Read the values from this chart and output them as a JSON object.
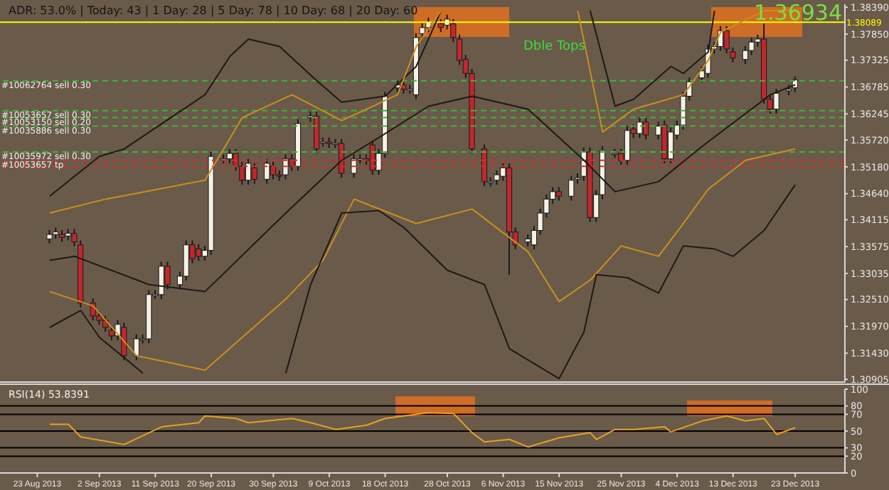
{
  "chart_data": [
    {
      "type": "candlestick",
      "tick_labels": "y",
      "xlim": [
        "2013-08-17",
        "2013-12-31"
      ],
      "ylim": [
        1.3085,
        1.3845
      ],
      "yticks": [
        {
          "value": 1.3839,
          "label": "1.38390"
        },
        {
          "value": 1.3785,
          "label": "1.37850"
        },
        1.37325,
        1.36785,
        1.36245,
        {
          "value": 1.3572,
          "label": "1.35720"
        },
        {
          "value": 1.3518,
          "label": "1.35180"
        },
        {
          "value": 1.3464,
          "label": "1.34640"
        },
        1.34115,
        1.33575,
        1.33035,
        {
          "value": 1.3251,
          "label": "1.32510"
        },
        {
          "value": 1.3197,
          "label": "1.31970"
        },
        {
          "value": 1.3143,
          "label": "1.31430"
        },
        1.30905
      ],
      "x": [
        "2013-08-25",
        "2013-08-26",
        "2013-08-27",
        "2013-08-28",
        "2013-08-29",
        "2013-08-30",
        "2013-09-01",
        "2013-09-02",
        "2013-09-03",
        "2013-09-04",
        "2013-09-05",
        "2013-09-06",
        "2013-09-08",
        "2013-09-09",
        "2013-09-10",
        "2013-09-11",
        "2013-09-12",
        "2013-09-13",
        "2013-09-15",
        "2013-09-16",
        "2013-09-17",
        "2013-09-18",
        "2013-09-19",
        "2013-09-20",
        "2013-09-22",
        "2013-09-23",
        "2013-09-24",
        "2013-09-25",
        "2013-09-26",
        "2013-09-27",
        "2013-09-29",
        "2013-09-30",
        "2013-10-01",
        "2013-10-02",
        "2013-10-03",
        "2013-10-04",
        "2013-10-06",
        "2013-10-07",
        "2013-10-08",
        "2013-10-09",
        "2013-10-10",
        "2013-10-11",
        "2013-10-13",
        "2013-10-14",
        "2013-10-15",
        "2013-10-16",
        "2013-10-17",
        "2013-10-18",
        "2013-10-20",
        "2013-10-21",
        "2013-10-22",
        "2013-10-23",
        "2013-10-24",
        "2013-10-25",
        "2013-10-27",
        "2013-10-28",
        "2013-10-29",
        "2013-10-30",
        "2013-10-31",
        "2013-11-01",
        "2013-11-03",
        "2013-11-04",
        "2013-11-05",
        "2013-11-06",
        "2013-11-07",
        "2013-11-08",
        "2013-11-10",
        "2013-11-11",
        "2013-11-12",
        "2013-11-13",
        "2013-11-14",
        "2013-11-15",
        "2013-11-17",
        "2013-11-18",
        "2013-11-19",
        "2013-11-20",
        "2013-11-21",
        "2013-11-22",
        "2013-11-24",
        "2013-11-25",
        "2013-11-26",
        "2013-11-27",
        "2013-11-28",
        "2013-11-29",
        "2013-12-01",
        "2013-12-02",
        "2013-12-03",
        "2013-12-04",
        "2013-12-05",
        "2013-12-06",
        "2013-12-08",
        "2013-12-09",
        "2013-12-10",
        "2013-12-11",
        "2013-12-12",
        "2013-12-13",
        "2013-12-15",
        "2013-12-16",
        "2013-12-17",
        "2013-12-18",
        "2013-12-19",
        "2013-12-20",
        "2013-12-22",
        "2013-12-23"
      ],
      "ohlc": [
        [
          1.3373,
          1.3391,
          1.3364,
          1.3382
        ],
        [
          1.3382,
          1.3396,
          1.3373,
          1.3387
        ],
        [
          1.3382,
          1.3391,
          1.3367,
          1.3376
        ],
        [
          1.3379,
          1.3393,
          1.337,
          1.3384
        ],
        [
          1.3384,
          1.3393,
          1.3358,
          1.3367
        ],
        [
          1.3361,
          1.337,
          1.3235,
          1.3244
        ],
        [
          1.3244,
          1.3253,
          1.3209,
          1.3218
        ],
        [
          1.3218,
          1.3227,
          1.32,
          1.3209
        ],
        [
          1.3209,
          1.3218,
          1.3186,
          1.3195
        ],
        [
          1.3189,
          1.3198,
          1.3169,
          1.3178
        ],
        [
          1.3178,
          1.321,
          1.3169,
          1.3201
        ],
        [
          1.3195,
          1.3204,
          1.3129,
          1.3138
        ],
        [
          1.3138,
          1.3181,
          1.3129,
          1.3172
        ],
        [
          1.3172,
          1.3181,
          1.3163,
          1.3172
        ],
        [
          1.3172,
          1.327,
          1.3163,
          1.3261
        ],
        [
          1.3261,
          1.327,
          1.3252,
          1.3261
        ],
        [
          1.3261,
          1.3327,
          1.3252,
          1.3318
        ],
        [
          1.3318,
          1.3327,
          1.3272,
          1.3281
        ],
        [
          1.3281,
          1.3307,
          1.3272,
          1.3298
        ],
        [
          1.3298,
          1.337,
          1.3289,
          1.3361
        ],
        [
          1.3361,
          1.337,
          1.3324,
          1.3333
        ],
        [
          1.3353,
          1.3362,
          1.3329,
          1.3338
        ],
        [
          1.3338,
          1.3359,
          1.3329,
          1.335
        ],
        [
          1.335,
          1.3548,
          1.3341,
          1.3539
        ],
        [
          1.3534,
          1.3543,
          1.3525,
          1.3534
        ],
        [
          1.3534,
          1.3554,
          1.3525,
          1.3545
        ],
        [
          1.3545,
          1.3554,
          1.351,
          1.3519
        ],
        [
          1.3519,
          1.3528,
          1.3482,
          1.3491
        ],
        [
          1.3491,
          1.3534,
          1.3482,
          1.3525
        ],
        [
          1.3516,
          1.3525,
          1.3484,
          1.3493
        ],
        [
          1.3493,
          1.3534,
          1.3484,
          1.3525
        ],
        [
          1.3519,
          1.3528,
          1.3493,
          1.3502
        ],
        [
          1.3502,
          1.3511,
          1.349,
          1.3499
        ],
        [
          1.3502,
          1.3543,
          1.3493,
          1.3534
        ],
        [
          1.3534,
          1.3543,
          1.351,
          1.3519
        ],
        [
          1.3519,
          1.3614,
          1.351,
          1.3605
        ],
        [
          1.3617,
          1.3629,
          1.3608,
          1.362
        ],
        [
          1.362,
          1.3629,
          1.3545,
          1.3554
        ],
        [
          1.3568,
          1.3577,
          1.3559,
          1.3568
        ],
        [
          1.3568,
          1.3577,
          1.3556,
          1.3565
        ],
        [
          1.3565,
          1.3574,
          1.3556,
          1.3565
        ],
        [
          1.3565,
          1.3574,
          1.3496,
          1.3505
        ],
        [
          1.3505,
          1.3543,
          1.3496,
          1.3534
        ],
        [
          1.3534,
          1.3543,
          1.3525,
          1.3534
        ],
        [
          1.3534,
          1.3543,
          1.3522,
          1.3531
        ],
        [
          1.3562,
          1.3571,
          1.3502,
          1.3511
        ],
        [
          1.3511,
          1.3554,
          1.3502,
          1.3545
        ],
        [
          1.3545,
          1.3669,
          1.3536,
          1.366
        ],
        [
          1.3677,
          1.3692,
          1.3668,
          1.3683
        ],
        [
          1.3683,
          1.3692,
          1.3665,
          1.3674
        ],
        [
          1.3674,
          1.3683,
          1.3665,
          1.3674
        ],
        [
          1.3663,
          1.3787,
          1.3654,
          1.3778
        ],
        [
          1.3786,
          1.3807,
          1.3777,
          1.3798
        ],
        [
          1.3798,
          1.3818,
          1.3789,
          1.3809
        ],
        [
          1.3806,
          1.3815,
          1.3789,
          1.3798
        ],
        [
          1.3803,
          1.3824,
          1.3794,
          1.3815
        ],
        [
          1.3806,
          1.3815,
          1.3769,
          1.3778
        ],
        [
          1.3775,
          1.3784,
          1.3723,
          1.3732
        ],
        [
          1.3734,
          1.3743,
          1.3697,
          1.3706
        ],
        [
          1.3706,
          1.3715,
          1.3545,
          1.3554
        ],
        [
          1.3554,
          1.3563,
          1.3479,
          1.3488
        ],
        [
          1.3488,
          1.3497,
          1.3479,
          1.3488
        ],
        [
          1.3491,
          1.3511,
          1.3482,
          1.3502
        ],
        [
          1.3499,
          1.3525,
          1.349,
          1.3516
        ],
        [
          1.3516,
          1.3525,
          1.3301,
          1.3387
        ],
        [
          1.3387,
          1.3396,
          1.3352,
          1.3361
        ],
        [
          1.3367,
          1.3382,
          1.3358,
          1.3373
        ],
        [
          1.3361,
          1.3399,
          1.3352,
          1.339
        ],
        [
          1.339,
          1.3434,
          1.3381,
          1.3425
        ],
        [
          1.3425,
          1.3462,
          1.3416,
          1.3453
        ],
        [
          1.3453,
          1.3477,
          1.3444,
          1.3468
        ],
        [
          1.3468,
          1.3477,
          1.345,
          1.3459
        ],
        [
          1.3459,
          1.35,
          1.345,
          1.3491
        ],
        [
          1.3493,
          1.3505,
          1.3484,
          1.3496
        ],
        [
          1.3499,
          1.3557,
          1.349,
          1.3548
        ],
        [
          1.3548,
          1.3557,
          1.3407,
          1.3416
        ],
        [
          1.3416,
          1.3471,
          1.3407,
          1.3462
        ],
        [
          1.3462,
          1.356,
          1.3453,
          1.3551
        ],
        [
          1.3545,
          1.3554,
          1.3536,
          1.3545
        ],
        [
          1.3545,
          1.3554,
          1.3522,
          1.3531
        ],
        [
          1.3531,
          1.36,
          1.3522,
          1.3591
        ],
        [
          1.3594,
          1.3603,
          1.3576,
          1.3585
        ],
        [
          1.3585,
          1.3617,
          1.3576,
          1.3608
        ],
        [
          1.3608,
          1.3617,
          1.3573,
          1.3582
        ],
        [
          1.3582,
          1.3609,
          1.3573,
          1.36
        ],
        [
          1.3602,
          1.3611,
          1.3525,
          1.3534
        ],
        [
          1.3534,
          1.3597,
          1.3525,
          1.3588
        ],
        [
          1.3582,
          1.3611,
          1.3573,
          1.3602
        ],
        [
          1.3602,
          1.3669,
          1.3593,
          1.366
        ],
        [
          1.366,
          1.3698,
          1.3651,
          1.3689
        ],
        [
          1.3697,
          1.372,
          1.3688,
          1.3711
        ],
        [
          1.3706,
          1.3764,
          1.3697,
          1.3755
        ],
        [
          1.3755,
          1.3769,
          1.3746,
          1.376
        ],
        [
          1.376,
          1.3801,
          1.3751,
          1.3792
        ],
        [
          1.3792,
          1.3801,
          1.3746,
          1.3755
        ],
        [
          1.3749,
          1.3758,
          1.3728,
          1.3737
        ],
        [
          1.3734,
          1.3761,
          1.3725,
          1.3752
        ],
        [
          1.3752,
          1.3778,
          1.3743,
          1.3769
        ],
        [
          1.3769,
          1.3784,
          1.376,
          1.3775
        ],
        [
          1.3775,
          1.3806,
          1.3645,
          1.3654
        ],
        [
          1.3654,
          1.3663,
          1.3625,
          1.3634
        ],
        [
          1.3634,
          1.3675,
          1.3625,
          1.3666
        ],
        [
          1.3671,
          1.3683,
          1.3662,
          1.3674
        ],
        [
          1.3677,
          1.37,
          1.3668,
          1.3693
        ]
      ],
      "series": [
        {
          "type": "line",
          "color": "#1e1a16",
          "x": [
            "2013-08-25",
            "2013-09-02",
            "2013-09-06",
            "2013-09-19",
            "2013-09-23",
            "2013-09-26",
            "2013-10-01",
            "2013-10-07",
            "2013-10-11",
            "2013-10-18",
            "2013-10-23",
            "2013-10-27",
            "2013-11-01",
            "2013-11-20",
            "2013-11-24",
            "2013-11-27",
            "2013-12-03",
            "2013-12-05",
            "2013-12-09",
            "2013-12-10"
          ],
          "values": [
            1.3459,
            1.3539,
            1.3554,
            1.3663,
            1.374,
            1.3775,
            1.376,
            1.3691,
            1.3648,
            1.366,
            1.372,
            1.3832,
            null,
            1.3832,
            1.364,
            1.3654,
            1.372,
            1.3706,
            1.3749,
            1.3832
          ]
        },
        {
          "type": "line",
          "color": "#c8901e",
          "x": [
            "2013-08-25",
            "2013-09-03",
            "2013-09-19",
            "2013-09-25",
            "2013-10-03",
            "2013-10-11",
            "2013-10-20",
            "2013-10-23",
            "2013-10-27",
            "2013-11-07",
            "2013-11-18",
            "2013-11-22",
            "2013-11-27",
            "2013-12-05",
            "2013-12-09",
            "2013-12-11",
            "2013-12-18",
            "2013-12-23"
          ],
          "values": [
            1.3425,
            1.3453,
            1.3491,
            1.3617,
            1.3663,
            1.3611,
            1.3663,
            1.376,
            1.3832,
            null,
            1.3832,
            1.3588,
            1.3634,
            1.3663,
            1.3732,
            1.3789,
            1.3832,
            1.3832
          ]
        },
        {
          "type": "line",
          "color": "#1e1a16",
          "x": [
            "2013-08-25",
            "2013-08-29",
            "2013-09-10",
            "2013-09-19",
            "2013-10-02",
            "2013-10-11",
            "2013-10-17",
            "2013-10-25",
            "2013-11-01",
            "2013-11-10",
            "2013-11-19",
            "2013-11-24",
            "2013-12-01",
            "2013-12-08",
            "2013-12-15",
            "2013-12-19",
            "2013-12-23"
          ],
          "values": [
            1.333,
            1.3338,
            1.3281,
            1.3267,
            1.3425,
            1.3531,
            1.3577,
            1.364,
            1.366,
            1.3634,
            1.3531,
            1.3468,
            1.3488,
            1.3559,
            1.3625,
            1.3663,
            1.3683
          ]
        },
        {
          "type": "line",
          "color": "#c8901e",
          "x": [
            "2013-08-25",
            "2013-09-01",
            "2013-09-08",
            "2013-09-19",
            "2013-10-02",
            "2013-10-08",
            "2013-10-13",
            "2013-10-23",
            "2013-11-01",
            "2013-11-10",
            "2013-11-15",
            "2013-11-20",
            "2013-11-25",
            "2013-12-01",
            "2013-12-05",
            "2013-12-09",
            "2013-12-15",
            "2013-12-23"
          ],
          "values": [
            1.3267,
            1.3238,
            1.3138,
            1.3109,
            1.3252,
            1.333,
            1.3453,
            1.3404,
            1.3433,
            1.3347,
            1.3247,
            1.329,
            1.3359,
            1.3338,
            1.3404,
            1.3473,
            1.3531,
            1.3554
          ]
        },
        {
          "type": "line",
          "color": "#1e1a16",
          "x": [
            "2013-08-25",
            "2013-08-30",
            "2013-09-02",
            "2013-09-09",
            "2013-09-22",
            "2013-10-02",
            "2013-10-06",
            "2013-10-11",
            "2013-10-17",
            "2013-10-21",
            "2013-10-28",
            "2013-11-03",
            "2013-11-07",
            "2013-11-15",
            "2013-11-19",
            "2013-11-21",
            "2013-11-26",
            "2013-12-01",
            "2013-12-05",
            "2013-12-10",
            "2013-12-13",
            "2013-12-18",
            "2013-12-23"
          ],
          "values": [
            1.3195,
            1.3229,
            1.3175,
            1.3103,
            null,
            1.3103,
            1.3281,
            1.3425,
            1.343,
            1.3396,
            1.331,
            1.3281,
            1.3152,
            1.3092,
            1.3186,
            1.3301,
            1.3295,
            1.3264,
            1.3359,
            1.3353,
            1.3338,
            1.339,
            1.3482
          ]
        }
      ],
      "ref_lines": [
        {
          "axis": "y",
          "value": 1.38089,
          "label": "1.38089",
          "color": "#ffff00",
          "line_style": "solid"
        },
        {
          "axis": "y",
          "value": 1.3691,
          "label": "#10062764 sell 0.30",
          "color": "#3cb43c",
          "line_style": "dashed"
        },
        {
          "axis": "y",
          "value": 1.3631,
          "label": "#10053657 sell 0.30",
          "color": "#3cb43c",
          "line_style": "dashed"
        },
        {
          "axis": "y",
          "value": 1.3617,
          "label": "#10053150 sell 0.20",
          "color": "#3cb43c",
          "line_style": "dashed"
        },
        {
          "axis": "y",
          "value": 1.36,
          "label": "#10035886 sell 0.30",
          "color": "#3cb43c",
          "line_style": "dashed"
        },
        {
          "axis": "y",
          "value": 1.3548,
          "label": "#10035972 sell 0.30",
          "color": "#3cb43c",
          "line_style": "dashed"
        },
        {
          "axis": "y",
          "value": 1.3531,
          "label": "#10053657 tp",
          "color": "#d03030",
          "line_style": "dashed"
        },
        {
          "axis": "y",
          "value": 1.3519,
          "color": "#d03030",
          "line_style": "dashed"
        }
      ],
      "annotations": [
        "ADR: 53.0% | Today: 43 | 1 Day: 28 | 5 Day: 78 | 10 Day: 68 | 20 Day: 60",
        "Dble Tops",
        "1.36934"
      ]
    },
    {
      "type": "line",
      "xlim": [
        "2013-08-17",
        "2013-12-31"
      ],
      "ylim": [
        0,
        100
      ],
      "yticks": [
        0,
        20,
        30,
        50,
        70,
        80,
        100
      ],
      "xticks": [
        {
          "value": "2013-08-23",
          "label": "23 Aug 2013"
        },
        {
          "value": "2013-09-02",
          "label": "2 Sep 2013"
        },
        {
          "value": "2013-09-11",
          "label": "11 Sep 2013"
        },
        {
          "value": "2013-09-20",
          "label": "20 Sep 2013"
        },
        {
          "value": "2013-09-30",
          "label": "30 Sep 2013"
        },
        {
          "value": "2013-10-09",
          "label": "9 Oct 2013"
        },
        {
          "value": "2013-10-18",
          "label": "18 Oct 2013"
        },
        {
          "value": "2013-10-28",
          "label": "28 Oct 2013"
        },
        {
          "value": "2013-11-06",
          "label": "6 Nov 2013"
        },
        {
          "value": "2013-11-15",
          "label": "15 Nov 2013"
        },
        {
          "value": "2013-11-25",
          "label": "25 Nov 2013"
        },
        {
          "value": "2013-12-04",
          "label": "4 Dec 2013"
        },
        {
          "value": "2013-12-13",
          "label": "13 Dec 2013"
        },
        {
          "value": "2013-12-23",
          "label": "23 Dec 2013"
        }
      ],
      "series": [
        {
          "color": "#e8a020",
          "x": [
            "2013-08-25",
            "2013-08-28",
            "2013-08-30",
            "2013-09-06",
            "2013-09-10",
            "2013-09-12",
            "2013-09-18",
            "2013-09-19",
            "2013-09-24",
            "2013-09-26",
            "2013-10-03",
            "2013-10-06",
            "2013-10-10",
            "2013-10-15",
            "2013-10-18",
            "2013-10-25",
            "2013-10-29",
            "2013-11-01",
            "2013-11-03",
            "2013-11-07",
            "2013-11-10",
            "2013-11-15",
            "2013-11-20",
            "2013-11-21",
            "2013-11-24",
            "2013-11-27",
            "2013-12-02",
            "2013-12-03",
            "2013-12-08",
            "2013-12-12",
            "2013-12-15",
            "2013-12-18",
            "2013-12-20",
            "2013-12-23"
          ],
          "values": [
            58,
            58,
            43,
            34,
            48,
            55,
            60,
            68,
            65,
            60,
            65,
            60,
            52,
            57,
            65,
            72,
            71,
            48,
            37,
            40,
            31,
            42,
            48,
            40,
            52,
            52,
            55,
            49,
            62,
            68,
            62,
            65,
            46,
            54
          ]
        }
      ],
      "ref_lines": [
        {
          "axis": "y",
          "value": 80,
          "color": "#000000"
        },
        {
          "axis": "y",
          "value": 70,
          "color": "#000000"
        },
        {
          "axis": "y",
          "value": 50,
          "color": "#000000"
        },
        {
          "axis": "y",
          "value": 30,
          "color": "#000000"
        },
        {
          "axis": "y",
          "value": 20,
          "color": "#000000"
        }
      ],
      "annotations": [
        "RSI(14) 53.8391"
      ]
    }
  ]
}
